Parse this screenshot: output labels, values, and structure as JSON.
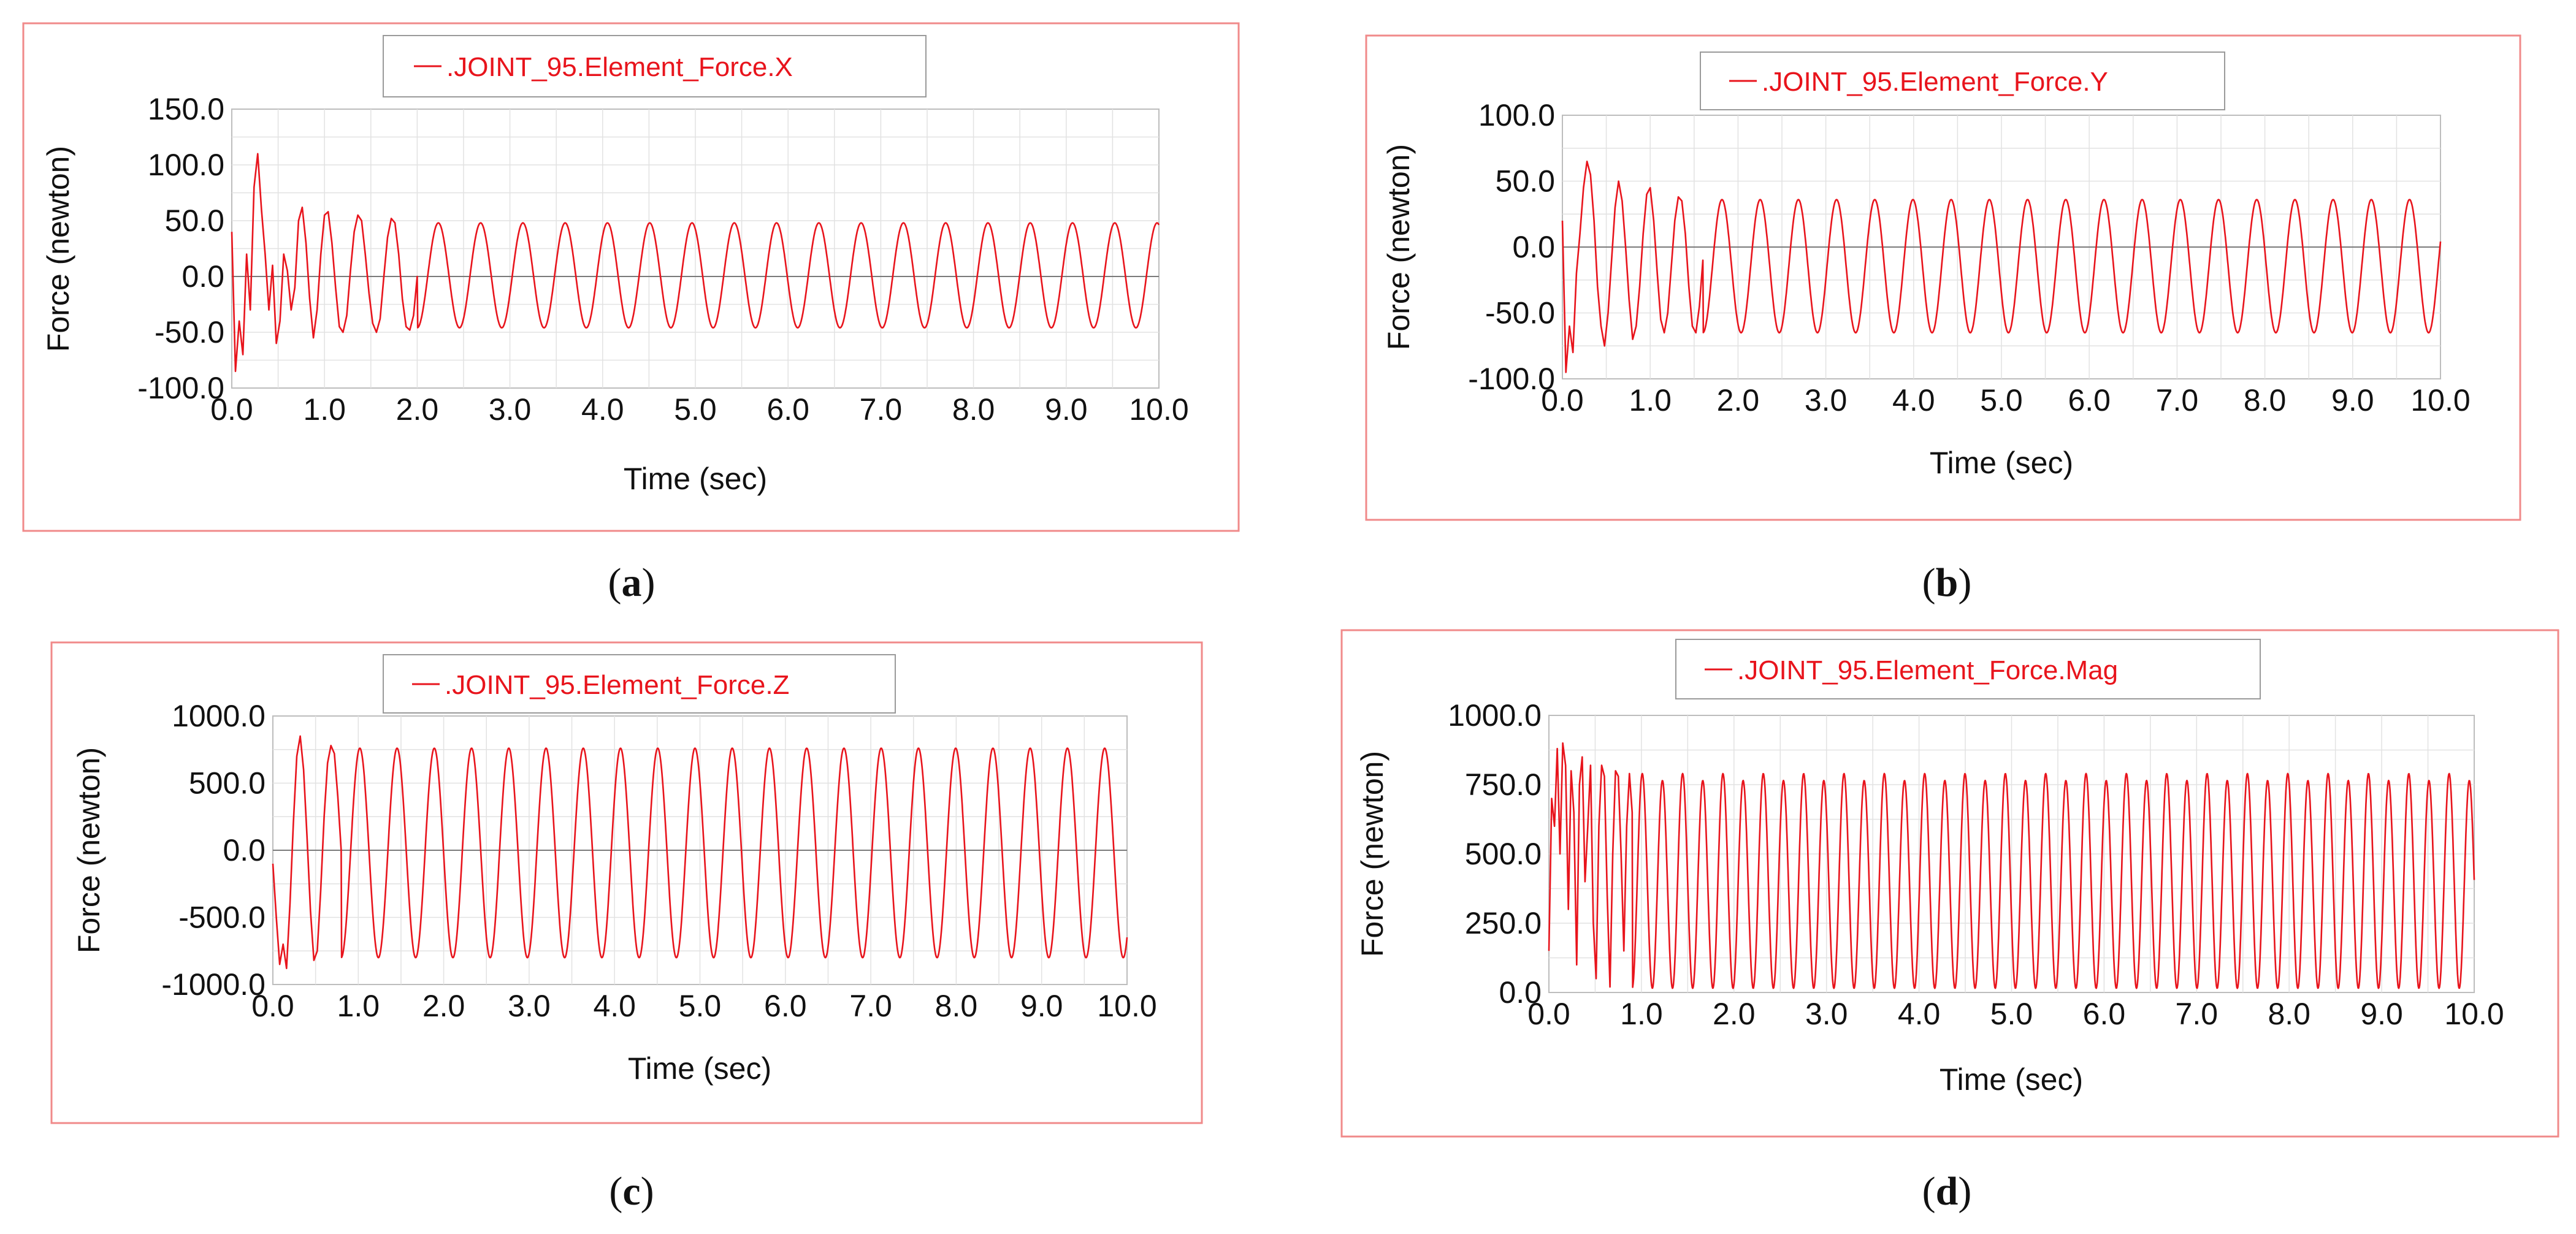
{
  "chart_data": [
    {
      "type": "line",
      "caption": "a",
      "legend": ".JOINT_95.Element_Force.X",
      "xlabel": "Time (sec)",
      "ylabel": "Force (newton)",
      "xlim": [
        0,
        10
      ],
      "ylim": [
        -100,
        150
      ],
      "xticks": [
        "0.0",
        "1.0",
        "2.0",
        "3.0",
        "4.0",
        "5.0",
        "6.0",
        "7.0",
        "8.0",
        "9.0",
        "10.0"
      ],
      "yticks": [
        "-100.0",
        "-50.0",
        "0.0",
        "50.0",
        "100.0",
        "150.0"
      ],
      "series": [
        {
          "color": "#e8141c",
          "x": [
            0.0,
            0.04,
            0.08,
            0.12,
            0.16,
            0.2,
            0.24,
            0.28,
            0.32,
            0.36,
            0.4,
            0.44,
            0.48,
            0.52,
            0.56,
            0.6,
            0.64,
            0.68,
            0.72,
            0.76,
            0.8,
            0.84,
            0.88,
            0.92,
            0.96,
            1.0,
            1.04,
            1.08,
            1.12,
            1.16,
            1.2,
            1.24,
            1.28,
            1.32,
            1.36,
            1.4,
            1.44,
            1.48,
            1.52,
            1.56,
            1.6,
            1.64,
            1.68,
            1.72,
            1.76,
            1.8,
            1.84,
            1.88,
            1.92,
            1.96,
            2.0
          ],
          "y": [
            40,
            -85,
            -40,
            -70,
            20,
            -30,
            80,
            110,
            60,
            20,
            -30,
            10,
            -60,
            -40,
            20,
            5,
            -30,
            -10,
            50,
            62,
            30,
            -20,
            -55,
            -30,
            20,
            55,
            58,
            30,
            -10,
            -45,
            -50,
            -35,
            5,
            40,
            55,
            50,
            20,
            -15,
            -42,
            -50,
            -38,
            0,
            35,
            52,
            48,
            20,
            -20,
            -45,
            -48,
            -35,
            0
          ]
        }
      ],
      "periodic": {
        "from": 2.0,
        "to": 10.0,
        "period": 0.456,
        "max": 48,
        "min": -46
      }
    },
    {
      "type": "line",
      "caption": "b",
      "legend": ".JOINT_95.Element_Force.Y",
      "xlabel": "Time (sec)",
      "ylabel": "Force (newton)",
      "xlim": [
        0,
        10
      ],
      "ylim": [
        -100,
        100
      ],
      "xticks": [
        "0.0",
        "1.0",
        "2.0",
        "3.0",
        "4.0",
        "5.0",
        "6.0",
        "7.0",
        "8.0",
        "9.0",
        "10.0"
      ],
      "yticks": [
        "-100.0",
        "-50.0",
        "0.0",
        "50.0",
        "100.0"
      ],
      "series": [
        {
          "color": "#e8141c",
          "x": [
            0.0,
            0.04,
            0.08,
            0.12,
            0.16,
            0.2,
            0.24,
            0.28,
            0.32,
            0.36,
            0.4,
            0.44,
            0.48,
            0.52,
            0.56,
            0.6,
            0.64,
            0.68,
            0.72,
            0.76,
            0.8,
            0.84,
            0.88,
            0.92,
            0.96,
            1.0,
            1.04,
            1.08,
            1.12,
            1.16,
            1.2,
            1.24,
            1.28,
            1.32,
            1.36,
            1.4,
            1.44,
            1.48,
            1.52,
            1.56,
            1.6
          ],
          "y": [
            20,
            -95,
            -60,
            -80,
            -20,
            10,
            45,
            65,
            55,
            20,
            -30,
            -60,
            -75,
            -50,
            -10,
            30,
            50,
            35,
            0,
            -40,
            -70,
            -60,
            -30,
            10,
            40,
            45,
            20,
            -20,
            -55,
            -65,
            -50,
            -15,
            20,
            38,
            35,
            10,
            -30,
            -60,
            -65,
            -45,
            -10
          ]
        }
      ],
      "periodic": {
        "from": 1.6,
        "to": 10.0,
        "period": 0.435,
        "max": 36,
        "min": -65
      }
    },
    {
      "type": "line",
      "caption": "c",
      "legend": ".JOINT_95.Element_Force.Z",
      "xlabel": "Time (sec)",
      "ylabel": "Force (newton)",
      "xlim": [
        0,
        10
      ],
      "ylim": [
        -1000,
        1000
      ],
      "xticks": [
        "0.0",
        "1.0",
        "2.0",
        "3.0",
        "4.0",
        "5.0",
        "6.0",
        "7.0",
        "8.0",
        "9.0",
        "10.0"
      ],
      "yticks": [
        "-1000.0",
        "-500.0",
        "0.0",
        "500.0",
        "1000.0"
      ],
      "series": [
        {
          "color": "#e8141c",
          "x": [
            0.0,
            0.04,
            0.08,
            0.12,
            0.16,
            0.2,
            0.24,
            0.28,
            0.32,
            0.36,
            0.4,
            0.44,
            0.48,
            0.52,
            0.56,
            0.6,
            0.64,
            0.68,
            0.72,
            0.76,
            0.8
          ],
          "y": [
            -100,
            -500,
            -850,
            -700,
            -880,
            -400,
            200,
            700,
            850,
            600,
            100,
            -450,
            -820,
            -750,
            -300,
            250,
            650,
            780,
            720,
            400,
            0
          ]
        }
      ],
      "periodic": {
        "from": 0.8,
        "to": 10.0,
        "period": 0.436,
        "max": 760,
        "min": -800
      }
    },
    {
      "type": "line",
      "caption": "d",
      "legend": ".JOINT_95.Element_Force.Mag",
      "xlabel": "Time (sec)",
      "ylabel": "Force (newton)",
      "xlim": [
        0,
        10
      ],
      "ylim": [
        0,
        1000
      ],
      "xticks": [
        "0.0",
        "1.0",
        "2.0",
        "3.0",
        "4.0",
        "5.0",
        "6.0",
        "7.0",
        "8.0",
        "9.0",
        "10.0"
      ],
      "yticks": [
        "0.0",
        "250.0",
        "500.0",
        "750.0",
        "1000.0"
      ],
      "series": [
        {
          "color": "#e8141c",
          "x": [
            0.0,
            0.03,
            0.06,
            0.09,
            0.12,
            0.15,
            0.18,
            0.21,
            0.24,
            0.27,
            0.3,
            0.33,
            0.36,
            0.39,
            0.42,
            0.45,
            0.48,
            0.51,
            0.54,
            0.57,
            0.6,
            0.63,
            0.66,
            0.69,
            0.72,
            0.75,
            0.78,
            0.81,
            0.84,
            0.87,
            0.9
          ],
          "y": [
            150,
            700,
            600,
            880,
            500,
            900,
            820,
            300,
            800,
            650,
            100,
            750,
            850,
            400,
            600,
            820,
            250,
            50,
            600,
            820,
            780,
            350,
            20,
            500,
            800,
            780,
            500,
            150,
            600,
            790,
            650
          ]
        }
      ],
      "periodic": {
        "from": 0.9,
        "to": 10.0,
        "period": 0.218,
        "max": 790,
        "min": 15,
        "alt": 25
      }
    }
  ]
}
